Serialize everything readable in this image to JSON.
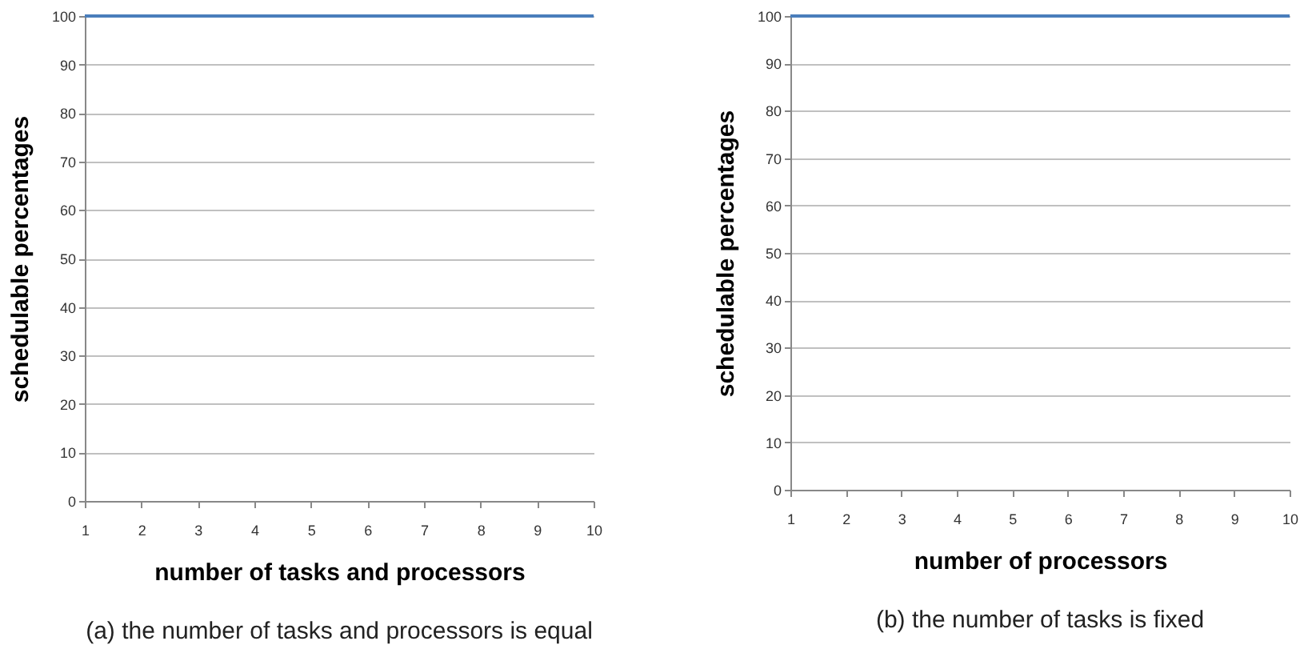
{
  "chart_data": [
    {
      "type": "line",
      "categories": [
        "1",
        "2",
        "3",
        "4",
        "5",
        "6",
        "7",
        "8",
        "9",
        "10"
      ],
      "xlabel": "number of tasks and processors",
      "ylabel": "schedulable percentages",
      "annotations": [
        "(a) the number of tasks and processors is equal"
      ],
      "series": [
        {
          "color": "#4a7ebb",
          "values": [
            100,
            100,
            100,
            100,
            100,
            100,
            100,
            100,
            100,
            100
          ]
        }
      ],
      "ylim": [
        0,
        100
      ],
      "yticks": [
        0,
        10,
        20,
        30,
        40,
        50,
        60,
        70,
        80,
        90,
        100
      ],
      "grid": "y",
      "legend": false,
      "marker": "none",
      "line_style": "solid"
    },
    {
      "type": "line",
      "categories": [
        "1",
        "2",
        "3",
        "4",
        "5",
        "6",
        "7",
        "8",
        "9",
        "10"
      ],
      "xlabel": "number of processors",
      "ylabel": "schedulable percentages",
      "annotations": [
        "(b) the number of tasks is fixed"
      ],
      "series": [
        {
          "color": "#4a7ebb",
          "values": [
            100,
            100,
            100,
            100,
            100,
            100,
            100,
            100,
            100,
            100
          ]
        }
      ],
      "ylim": [
        0,
        100
      ],
      "yticks": [
        0,
        10,
        20,
        30,
        40,
        50,
        60,
        70,
        80,
        90,
        100
      ],
      "grid": "y",
      "legend": false,
      "marker": "none",
      "line_style": "solid"
    }
  ]
}
